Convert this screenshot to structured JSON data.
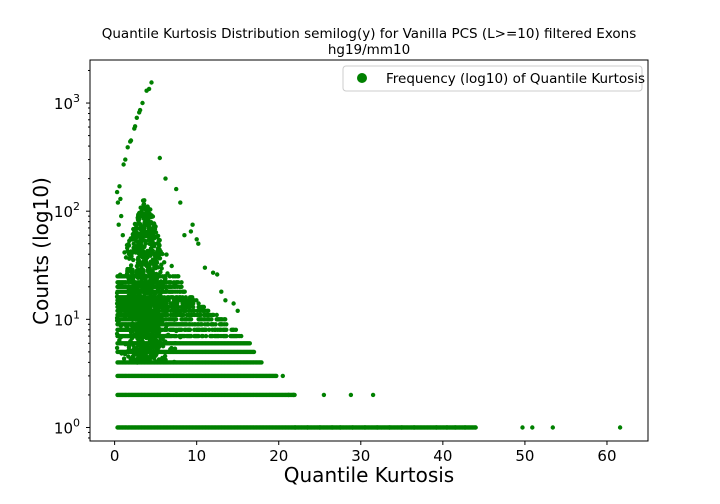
{
  "chart_data": {
    "type": "scatter",
    "title_line1": "Quantile Kurtosis Distribution semilog(y) for Vanilla PCS (L>=10) filtered Exons",
    "title_line2": "hg19/mm10",
    "xlabel": "Quantile Kurtosis",
    "ylabel": "Counts (log10)",
    "yscale": "log",
    "xlim": [
      -3,
      65
    ],
    "ylim": [
      0.75,
      2500
    ],
    "x_ticks": [
      0,
      10,
      20,
      30,
      40,
      50,
      60
    ],
    "x_tick_labels": [
      "0",
      "10",
      "20",
      "30",
      "40",
      "50",
      "60"
    ],
    "y_ticks": [
      1,
      10,
      100,
      1000
    ],
    "y_tick_labels": [
      "10",
      "10",
      "10",
      "10"
    ],
    "y_tick_exponents": [
      "0",
      "1",
      "2",
      "3"
    ],
    "grid": false,
    "legend": {
      "position": "top-right",
      "entries": [
        "Frequency (log10) of Quantile Kurtosis"
      ]
    },
    "marker_color": "#008000",
    "series": [
      {
        "name": "Frequency (log10) of Quantile Kurtosis",
        "peak_points": [
          [
            0.3,
            150
          ],
          [
            0.4,
            120
          ],
          [
            0.5,
            75
          ],
          [
            0.6,
            170
          ],
          [
            0.7,
            130
          ],
          [
            0.8,
            90
          ],
          [
            1.0,
            60
          ],
          [
            1.1,
            270
          ],
          [
            1.3,
            300
          ],
          [
            1.6,
            390
          ],
          [
            1.9,
            440
          ],
          [
            2.0,
            450
          ],
          [
            2.4,
            580
          ],
          [
            2.5,
            610
          ],
          [
            2.7,
            730
          ],
          [
            3.0,
            820
          ],
          [
            3.1,
            860
          ],
          [
            3.4,
            1000
          ],
          [
            3.9,
            1300
          ],
          [
            4.2,
            1350
          ],
          [
            4.5,
            1550
          ],
          [
            5.5,
            310
          ],
          [
            6.2,
            200
          ],
          [
            7.5,
            160
          ],
          [
            8.0,
            120
          ],
          [
            9.5,
            75
          ],
          [
            9.3,
            65
          ],
          [
            8.5,
            60
          ],
          [
            10.0,
            55
          ],
          [
            10.2,
            50
          ],
          [
            11.0,
            30
          ],
          [
            12.0,
            27
          ],
          [
            12.5,
            26
          ],
          [
            13.0,
            18
          ],
          [
            13.5,
            15
          ],
          [
            14.5,
            14
          ],
          [
            15.0,
            12
          ]
        ],
        "dense_core": {
          "x_range": [
            0.3,
            8.0
          ],
          "x_mode": 3.7,
          "log10_count_range": [
            0.6,
            2.15
          ]
        },
        "level_points": [
          {
            "count": 1,
            "x_max": 44.0
          },
          {
            "count": 2,
            "x_max": 22.0
          },
          {
            "count": 3,
            "x_max": 19.7
          },
          {
            "count": 4,
            "x_max": 18.0
          },
          {
            "count": 5,
            "x_max": 17.0
          },
          {
            "count": 6,
            "x_max": 16.5
          },
          {
            "count": 7,
            "x_max": 15.5
          },
          {
            "count": 8,
            "x_max": 14.8
          },
          {
            "count": 9,
            "x_max": 14.0
          },
          {
            "count": 10,
            "x_max": 13.5
          },
          {
            "count": 11,
            "x_max": 12.5
          },
          {
            "count": 12,
            "x_max": 11.5
          },
          {
            "count": 13,
            "x_max": 11.0
          },
          {
            "count": 14,
            "x_max": 10.5
          },
          {
            "count": 15,
            "x_max": 10.0
          },
          {
            "count": 16,
            "x_max": 9.5
          },
          {
            "count": 18,
            "x_max": 9.0
          },
          {
            "count": 20,
            "x_max": 8.6
          },
          {
            "count": 22,
            "x_max": 8.2
          },
          {
            "count": 25,
            "x_max": 7.8
          }
        ],
        "outliers": [
          [
            19.7,
            3
          ],
          [
            20.5,
            3
          ],
          [
            21.2,
            2
          ],
          [
            21.8,
            2
          ],
          [
            25.5,
            2
          ],
          [
            28.8,
            2
          ],
          [
            31.5,
            2
          ],
          [
            22.0,
            1
          ],
          [
            23.5,
            1
          ],
          [
            25.0,
            1
          ],
          [
            26.5,
            1
          ],
          [
            27.5,
            1
          ],
          [
            29.0,
            1
          ],
          [
            30.5,
            1
          ],
          [
            32.0,
            1
          ],
          [
            33.5,
            1
          ],
          [
            35.0,
            1
          ],
          [
            36.5,
            1
          ],
          [
            39.2,
            1
          ],
          [
            40.5,
            1
          ],
          [
            41.5,
            1
          ],
          [
            42.7,
            1
          ],
          [
            44.0,
            1
          ],
          [
            49.7,
            1
          ],
          [
            50.9,
            1
          ],
          [
            53.4,
            1
          ],
          [
            61.6,
            1
          ]
        ]
      }
    ]
  }
}
